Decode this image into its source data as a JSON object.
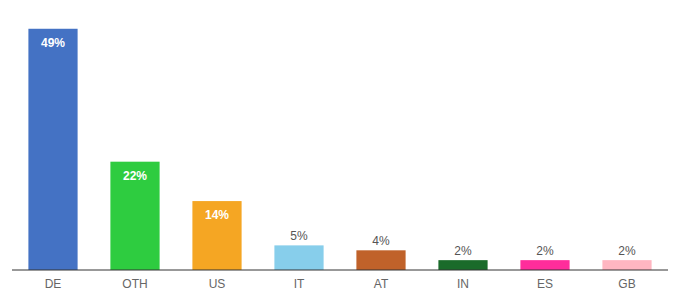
{
  "chart_data": {
    "type": "bar",
    "categories": [
      "DE",
      "OTH",
      "US",
      "IT",
      "AT",
      "IN",
      "ES",
      "GB"
    ],
    "values": [
      49,
      22,
      14,
      5,
      4,
      2,
      2,
      2
    ],
    "value_labels": [
      "49%",
      "22%",
      "14%",
      "5%",
      "4%",
      "2%",
      "2%",
      "2%"
    ],
    "colors": [
      "#4472c4",
      "#2ecc40",
      "#f5a623",
      "#87ceeb",
      "#c0622a",
      "#1a6b2a",
      "#ff2d9b",
      "#ffb6c1"
    ],
    "ylim": [
      0,
      52
    ],
    "grid": false,
    "data_labels": true,
    "tick_labels": "x"
  }
}
